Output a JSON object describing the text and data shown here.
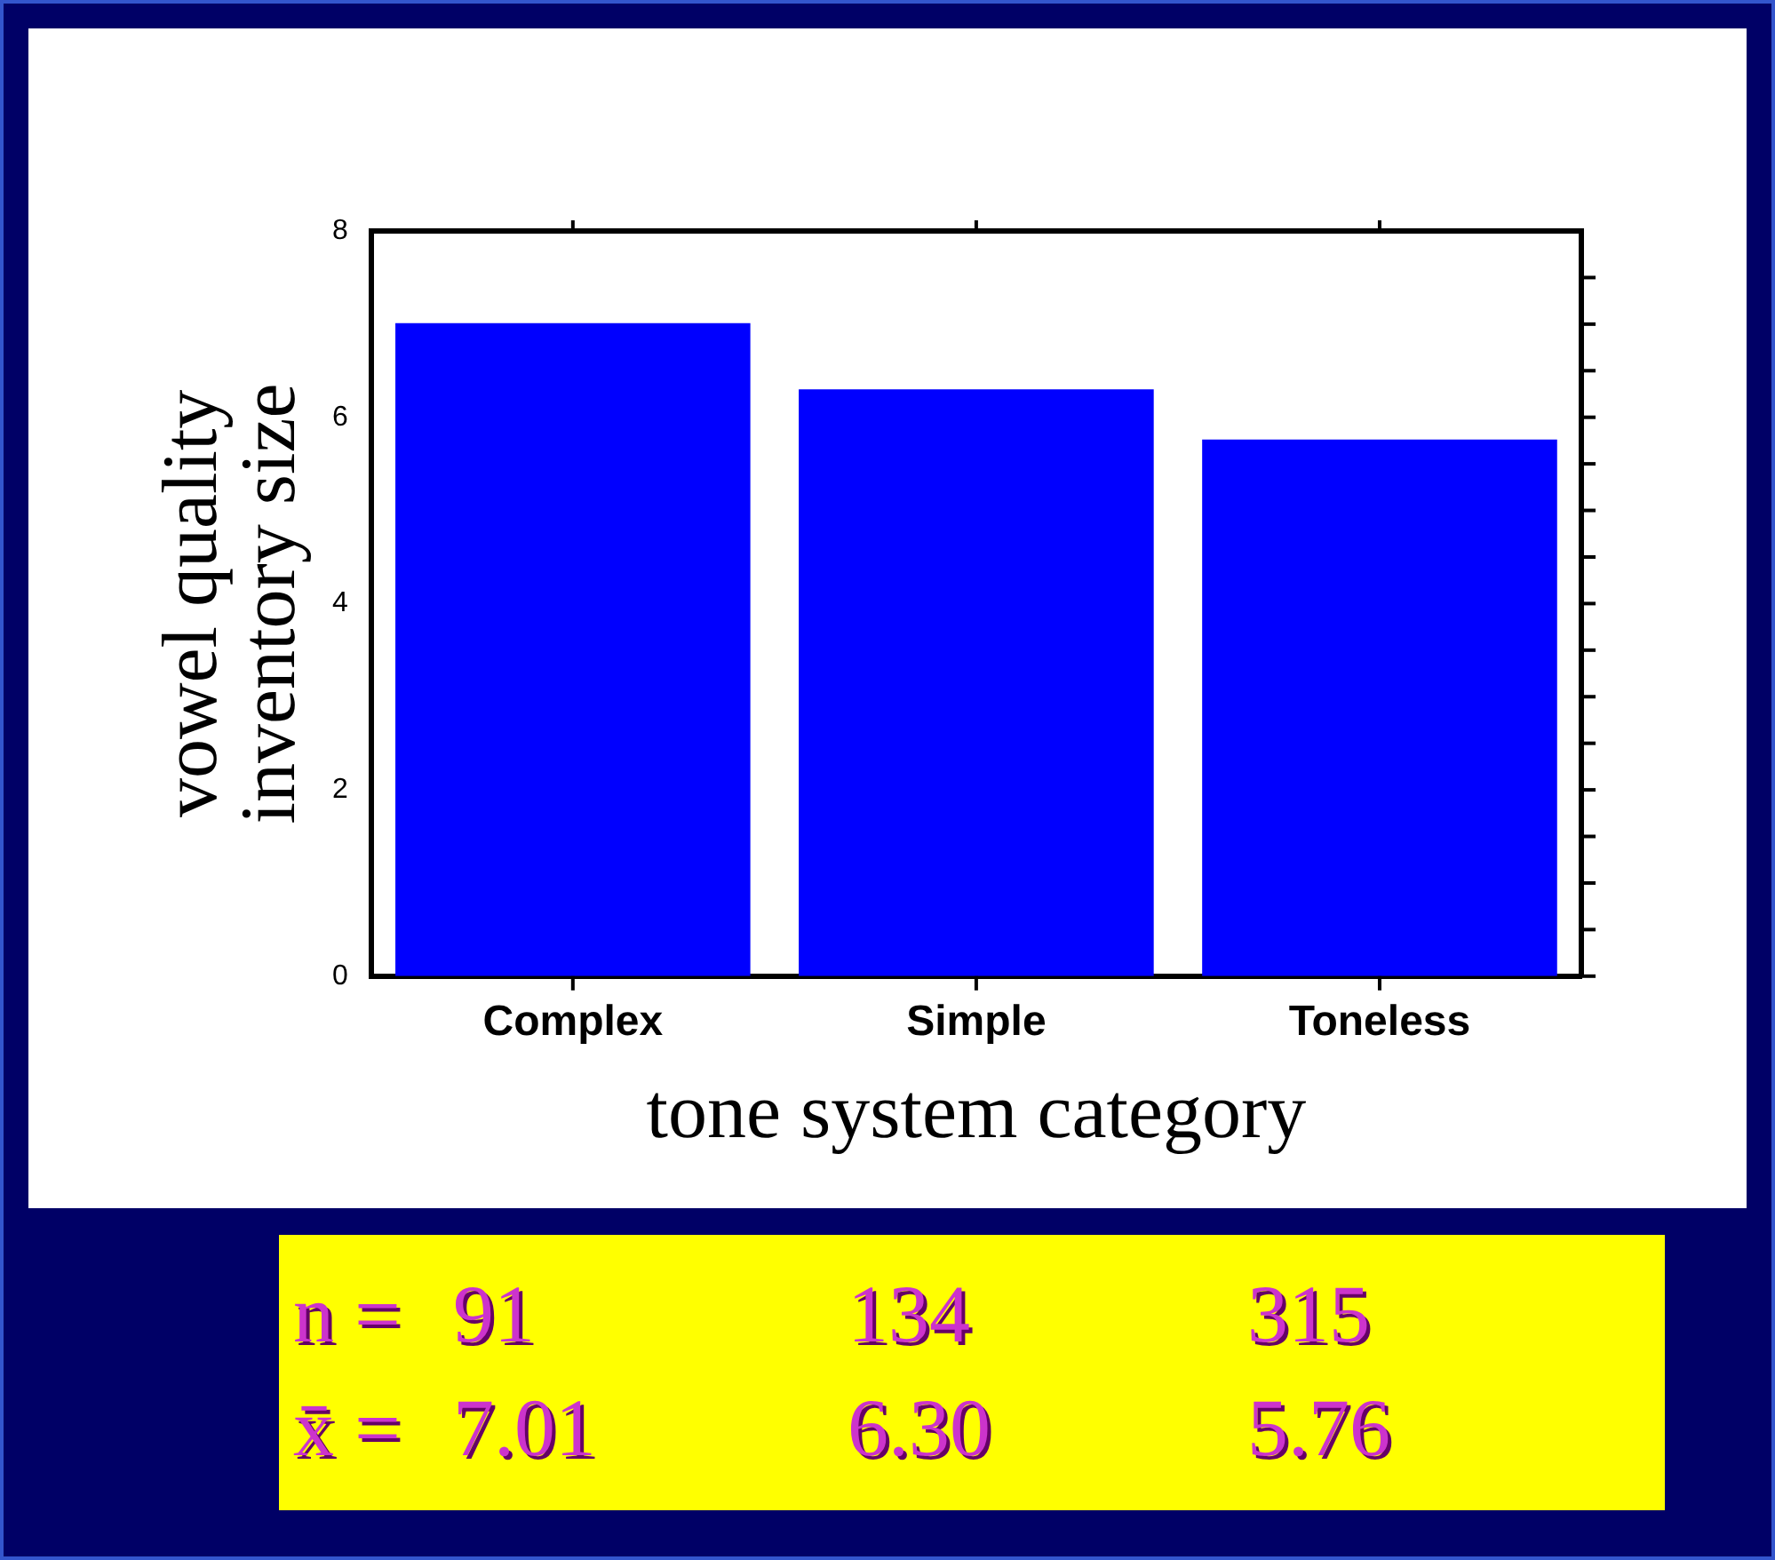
{
  "chart_data": {
    "type": "bar",
    "xlabel": "tone system category",
    "ylabel": "vowel quality\ninventory size",
    "categories": [
      "Complex",
      "Simple",
      "Toneless"
    ],
    "values": [
      7.01,
      6.3,
      5.76
    ],
    "color": "#0000ff",
    "value_labels": [
      "7.01",
      "6.30",
      "5.76"
    ],
    "ylim": [
      0,
      8
    ],
    "yticks": [
      0,
      2,
      4,
      6,
      8
    ],
    "grid": false,
    "legend": false,
    "annotations": [
      "n =",
      "91",
      "134",
      "315",
      "x̄ ="
    ]
  }
}
